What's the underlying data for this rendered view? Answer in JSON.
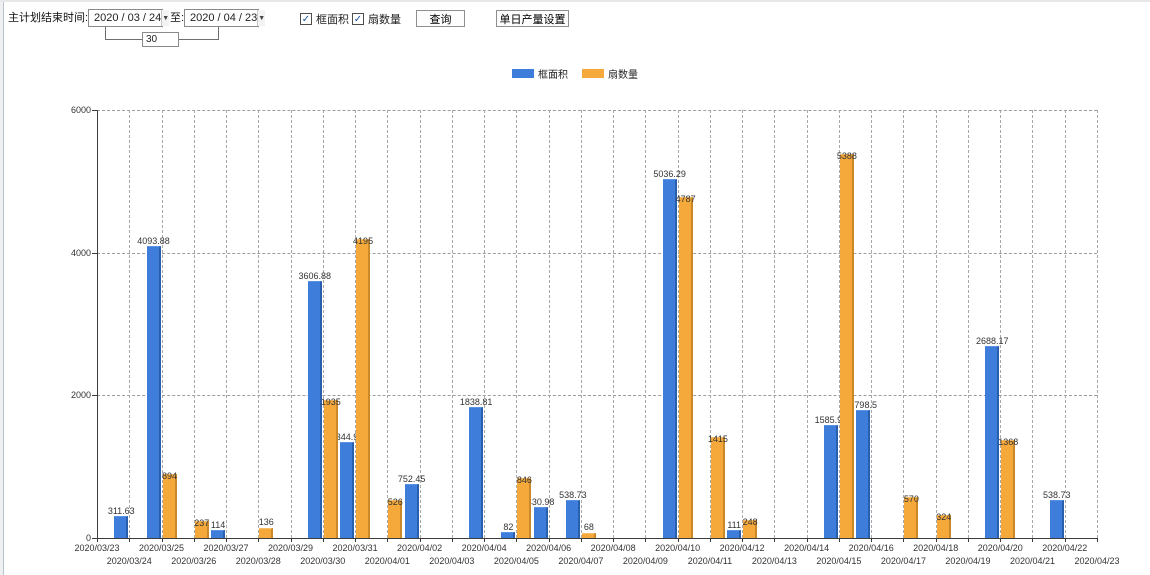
{
  "toolbar": {
    "plan_end_label": "主计划结束时间:",
    "date_from": "2020 / 03 / 24",
    "to_label": "至:",
    "date_to": "2020 / 04 / 23",
    "interval_days": "30",
    "checkbox_frame_area_label": "框面积",
    "checkbox_frame_area_checked": "✓",
    "checkbox_sash_count_label": "扇数量",
    "checkbox_sash_count_checked": "✓",
    "query_button": "查询",
    "daily_output_button": "单日产量设置",
    "combo_arrow": "▼"
  },
  "chart_data": {
    "type": "bar",
    "title": "",
    "xlabel": "",
    "ylabel": "",
    "ylim": [
      0,
      6000
    ],
    "yticks": [
      0,
      2000,
      4000,
      6000
    ],
    "grid": true,
    "legend_position": "top",
    "categories": [
      "2020/03/23",
      "2020/03/24",
      "2020/03/25",
      "2020/03/26",
      "2020/03/27",
      "2020/03/28",
      "2020/03/29",
      "2020/03/30",
      "2020/03/31",
      "2020/04/01",
      "2020/04/02",
      "2020/04/03",
      "2020/04/04",
      "2020/04/05",
      "2020/04/06",
      "2020/04/07",
      "2020/04/08",
      "2020/04/09",
      "2020/04/10",
      "2020/04/11",
      "2020/04/12",
      "2020/04/13",
      "2020/04/14",
      "2020/04/15",
      "2020/04/16",
      "2020/04/17",
      "2020/04/18",
      "2020/04/19",
      "2020/04/20",
      "2020/04/21",
      "2020/04/22",
      "2020/04/23"
    ],
    "series": [
      {
        "name": "框面积",
        "color": "#3e7eda",
        "values": [
          null,
          311.63,
          4093.88,
          null,
          114,
          null,
          null,
          3606.88,
          1344.95,
          null,
          752.45,
          null,
          1838.81,
          82,
          430.98,
          538.73,
          null,
          null,
          5036.29,
          null,
          111,
          null,
          null,
          1585.96,
          1798.5,
          null,
          null,
          null,
          2688.17,
          null,
          538.73,
          null
        ]
      },
      {
        "name": "扇数量",
        "color": "#f5a93b",
        "values": [
          null,
          null,
          894,
          237,
          null,
          136,
          null,
          1935,
          4195,
          526,
          null,
          null,
          null,
          846,
          null,
          68,
          null,
          null,
          4787,
          1415,
          248,
          null,
          null,
          5388,
          null,
          570,
          324,
          null,
          1368,
          null,
          null,
          null
        ]
      }
    ]
  }
}
